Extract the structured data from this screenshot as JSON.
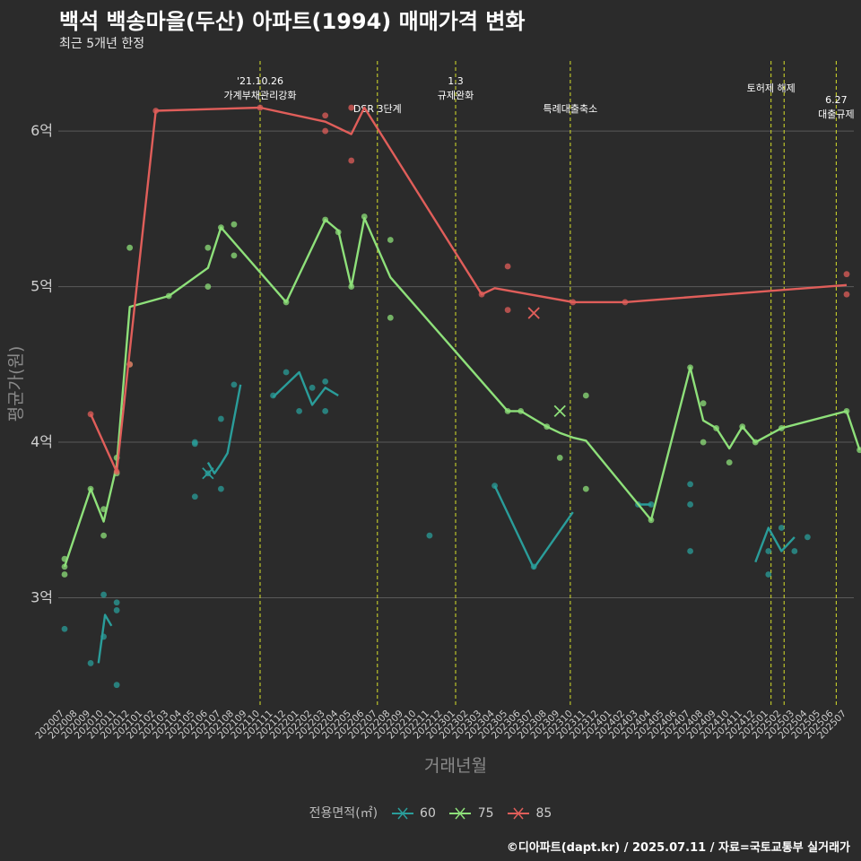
{
  "title": "백석 백송마을(두산) 아파트(1994) 매매가격 변화",
  "subtitle": "최근 5개년 한정",
  "caption": "©디아파트(dapt.kr) / 2025.07.11 / 자료=국토교통부 실거래가",
  "colors": {
    "background": "#2b2b2b",
    "grid": "#5a5a5a",
    "event_line": "#d7e02a"
  },
  "chart_data": {
    "type": "line",
    "xlabel": "거래년월",
    "ylabel": "평균가(원)",
    "ylim": [
      2.3,
      6.45
    ],
    "yticks": [
      3,
      4,
      5,
      6
    ],
    "ytick_labels": [
      "3억",
      "4억",
      "5억",
      "6억"
    ],
    "categories": [
      "202007",
      "202008",
      "202009",
      "202010",
      "202011",
      "202012",
      "202101",
      "202102",
      "202103",
      "202104",
      "202105",
      "202106",
      "202107",
      "202108",
      "202109",
      "202110",
      "202111",
      "202112",
      "202201",
      "202202",
      "202203",
      "202204",
      "202205",
      "202206",
      "202207",
      "202208",
      "202209",
      "202210",
      "202211",
      "202212",
      "202301",
      "202302",
      "202303",
      "202304",
      "202305",
      "202306",
      "202307",
      "202308",
      "202309",
      "202310",
      "202311",
      "202312",
      "202401",
      "202402",
      "202403",
      "202404",
      "202405",
      "202406",
      "202407",
      "202408",
      "202409",
      "202410",
      "202411",
      "202412",
      "202501",
      "202502",
      "202503",
      "202504",
      "202505",
      "202506",
      "202507"
    ],
    "legend": {
      "title": "전용면적(㎡)",
      "position": "bottom"
    },
    "series": [
      {
        "name": "60",
        "color": "#2a9d9a",
        "line": [
          [
            2.6,
            2.58
          ],
          [
            3.1,
            2.89
          ],
          [
            3.6,
            2.82
          ],
          null,
          [
            11.0,
            3.87
          ],
          [
            11.5,
            3.8
          ],
          [
            12.0,
            3.86
          ],
          [
            12.5,
            3.93
          ],
          [
            13.5,
            4.37
          ],
          null,
          [
            16.0,
            4.29
          ],
          [
            17.0,
            4.37
          ],
          [
            18.0,
            4.45
          ],
          [
            19.0,
            4.24
          ],
          [
            20.0,
            4.35
          ],
          [
            21.0,
            4.3
          ],
          null,
          [
            33.0,
            3.72
          ],
          [
            36.0,
            3.19
          ],
          [
            39.0,
            3.55
          ],
          null,
          [
            44.0,
            3.6
          ],
          [
            45.0,
            3.6
          ],
          null,
          [
            53.0,
            3.23
          ],
          [
            54.0,
            3.45
          ],
          [
            55.0,
            3.3
          ],
          [
            56.0,
            3.39
          ]
        ],
        "points": [
          [
            0,
            2.8
          ],
          [
            2,
            2.58
          ],
          [
            3,
            3.02
          ],
          [
            3,
            2.75
          ],
          [
            4,
            2.92
          ],
          [
            4,
            2.97
          ],
          [
            4,
            2.44
          ],
          [
            10,
            3.99
          ],
          [
            10,
            4.0
          ],
          [
            10,
            3.65
          ],
          [
            11,
            3.8
          ],
          [
            12,
            3.7
          ],
          [
            12,
            4.15
          ],
          [
            13,
            4.37
          ],
          [
            16,
            4.3
          ],
          [
            17,
            4.45
          ],
          [
            18,
            4.2
          ],
          [
            19,
            4.35
          ],
          [
            20,
            4.39
          ],
          [
            20,
            4.2
          ],
          [
            28,
            3.4
          ],
          [
            33,
            3.72
          ],
          [
            36,
            3.2
          ],
          [
            44,
            3.6
          ],
          [
            45,
            3.6
          ],
          [
            48,
            3.73
          ],
          [
            48,
            3.6
          ],
          [
            48,
            3.3
          ],
          [
            54,
            3.15
          ],
          [
            54,
            3.3
          ],
          [
            55,
            3.45
          ],
          [
            56,
            3.3
          ],
          [
            57,
            3.39
          ]
        ],
        "cross": [
          11.0,
          3.8
        ]
      },
      {
        "name": "75",
        "color": "#8ee07a",
        "line": [
          [
            0,
            3.2
          ],
          [
            2,
            3.7
          ],
          [
            3,
            3.49
          ],
          [
            4,
            3.85
          ],
          [
            5,
            4.87
          ],
          [
            8,
            4.94
          ],
          [
            11,
            5.12
          ],
          [
            12,
            5.38
          ],
          [
            17,
            4.9
          ],
          [
            20,
            5.43
          ],
          [
            21,
            5.36
          ],
          [
            22,
            5.0
          ],
          [
            23,
            5.44
          ],
          [
            25,
            5.06
          ],
          [
            34,
            4.2
          ],
          [
            35,
            4.2
          ],
          [
            37,
            4.1
          ],
          [
            38,
            4.06
          ],
          [
            39,
            4.03
          ],
          [
            40,
            4.01
          ],
          [
            45,
            3.5
          ],
          [
            48,
            4.48
          ],
          [
            49,
            4.14
          ],
          [
            50,
            4.09
          ],
          [
            51,
            3.96
          ],
          [
            52,
            4.1
          ],
          [
            53,
            4.0
          ],
          [
            55,
            4.09
          ],
          [
            60,
            4.2
          ],
          [
            61,
            3.95
          ]
        ],
        "points": [
          [
            0,
            3.25
          ],
          [
            0,
            3.2
          ],
          [
            0,
            3.15
          ],
          [
            2,
            3.7
          ],
          [
            3,
            3.57
          ],
          [
            3,
            3.4
          ],
          [
            4,
            3.9
          ],
          [
            4,
            3.8
          ],
          [
            5,
            5.25
          ],
          [
            5,
            4.5
          ],
          [
            8,
            4.94
          ],
          [
            11,
            5.25
          ],
          [
            11,
            5.0
          ],
          [
            12,
            5.38
          ],
          [
            13,
            5.4
          ],
          [
            13,
            5.2
          ],
          [
            17,
            4.9
          ],
          [
            20,
            5.43
          ],
          [
            21,
            5.35
          ],
          [
            22,
            5.0
          ],
          [
            23,
            5.45
          ],
          [
            25,
            5.3
          ],
          [
            25,
            4.8
          ],
          [
            34,
            4.2
          ],
          [
            35,
            4.2
          ],
          [
            37,
            4.1
          ],
          [
            38,
            3.9
          ],
          [
            40,
            4.3
          ],
          [
            40,
            3.7
          ],
          [
            45,
            3.5
          ],
          [
            48,
            4.48
          ],
          [
            49,
            4.25
          ],
          [
            49,
            4.0
          ],
          [
            50,
            4.09
          ],
          [
            51,
            3.87
          ],
          [
            52,
            4.1
          ],
          [
            53,
            4.0
          ],
          [
            55,
            4.09
          ],
          [
            60,
            4.2
          ],
          [
            61,
            3.95
          ]
        ],
        "cross": [
          38.0,
          4.2
        ]
      },
      {
        "name": "85",
        "color": "#e05e5a",
        "line": [
          [
            2,
            4.18
          ],
          [
            4,
            3.81
          ],
          [
            7,
            6.13
          ],
          [
            15,
            6.15
          ],
          [
            20,
            6.06
          ],
          [
            22,
            5.98
          ],
          [
            23,
            6.15
          ],
          [
            32,
            4.95
          ],
          [
            33,
            4.99
          ],
          [
            39,
            4.9
          ],
          [
            43,
            4.9
          ],
          [
            60,
            5.01
          ]
        ],
        "points": [
          [
            2,
            4.18
          ],
          [
            4,
            3.81
          ],
          [
            5,
            4.5
          ],
          [
            7,
            6.13
          ],
          [
            15,
            6.15
          ],
          [
            20,
            6.1
          ],
          [
            20,
            6.0
          ],
          [
            22,
            5.81
          ],
          [
            22,
            6.15
          ],
          [
            32,
            4.95
          ],
          [
            34,
            5.13
          ],
          [
            34,
            4.85
          ],
          [
            39,
            4.9
          ],
          [
            43,
            4.9
          ],
          [
            60,
            5.08
          ],
          [
            60,
            4.95
          ]
        ],
        "cross": [
          36.0,
          4.83
        ]
      }
    ],
    "annotations": [
      {
        "x": 15,
        "label": "'21.10.26\n가계부채관리강화",
        "row": 0
      },
      {
        "x": 24,
        "label": "DSR 3단계",
        "row": 2
      },
      {
        "x": 30,
        "label": "1.3\n규제완화",
        "row": 0
      },
      {
        "x": 38.8,
        "label": "특례대출축소",
        "row": 2
      },
      {
        "x": 54.2,
        "label": "토허제 해제",
        "row": 1
      },
      {
        "x": 55.2,
        "label": "",
        "row": 0
      },
      {
        "x": 59.2,
        "label": "6.27\n대출규제",
        "row": 3
      }
    ]
  }
}
